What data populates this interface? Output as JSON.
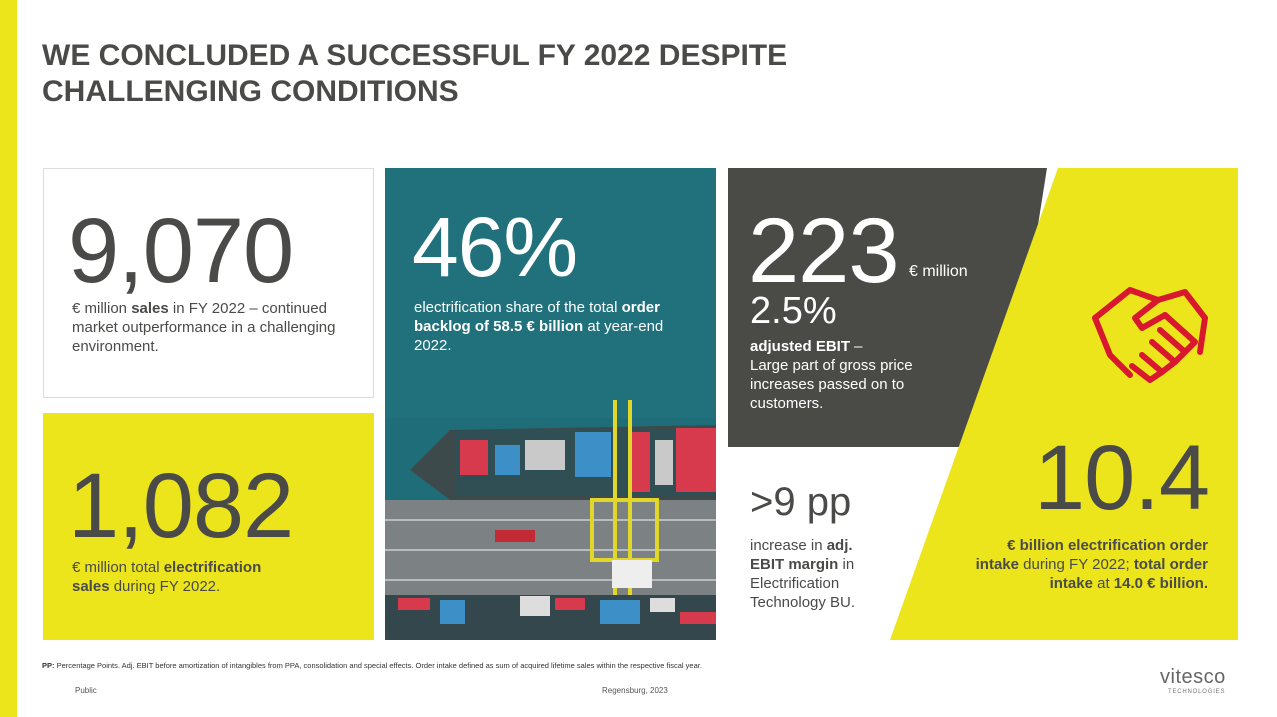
{
  "title": "WE CONCLUDED A SUCCESSFUL FY 2022 DESPITE CHALLENGING CONDITIONS",
  "tiles": [
    {
      "figure": "9,070",
      "text": [
        "€ million ",
        "sales",
        " in FY 2022 – continued market outperformance in a challenging environment."
      ]
    },
    {
      "figure": "1,082",
      "text": [
        "€ million total ",
        "electrification sales",
        " during FY 2022."
      ]
    },
    {
      "figure": "46%",
      "text": [
        "electrification share of the total ",
        "order backlog of 58.5 € billion",
        " at year-end 2022."
      ]
    },
    {
      "figure": "223",
      "unit": "€ million",
      "sub_figure": "2.5%",
      "text": [
        "adjusted EBIT",
        " –",
        "Large part of gross price increases passed on to customers."
      ]
    },
    {
      "figure": ">9 pp",
      "text": [
        "increase in ",
        "adj. EBIT margin",
        " in Electrification Technology BU."
      ]
    },
    {
      "figure": "10.4",
      "text": [
        "€ billion electrification order intake",
        " during FY 2022; ",
        "total order intake",
        " at ",
        "14.0 € billion."
      ]
    }
  ],
  "footnote": [
    "PP:",
    " Percentage Points. Adj. EBIT before amortization of intangibles from PPA, consolidation and special effects. Order intake defined as sum of acquired lifetime sales within the respective fiscal year."
  ],
  "footer": {
    "classification": "Public",
    "location_date": "Regensburg, 2023"
  },
  "logo": {
    "name": "vitesco",
    "tagline": "TECHNOLOGIES"
  }
}
